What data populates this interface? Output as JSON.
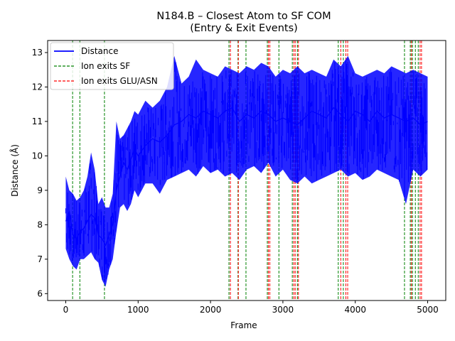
{
  "chart_data": {
    "type": "line",
    "title_line1": "N184.B – Closest Atom to SF COM",
    "title_line2": "(Entry & Exit Events)",
    "xlabel": "Frame",
    "ylabel": "Distance (Å)",
    "xlim": [
      -250,
      5250
    ],
    "ylim": [
      5.8,
      13.35
    ],
    "xticks": [
      0,
      1000,
      2000,
      3000,
      4000,
      5000
    ],
    "yticks": [
      6,
      7,
      8,
      9,
      10,
      11,
      12,
      13
    ],
    "grid": false,
    "legend_position": "top-left",
    "legend": [
      {
        "label": "Distance",
        "style": "solid",
        "color": "#0000ff"
      },
      {
        "label": "Ion exits SF",
        "style": "dashed",
        "color": "#008000"
      },
      {
        "label": "Ion exits GLU/ASN",
        "style": "dashed",
        "color": "#ff0000"
      }
    ],
    "series": [
      {
        "name": "Distance",
        "color": "#0000ff",
        "x": [
          0,
          50,
          100,
          150,
          200,
          250,
          300,
          350,
          400,
          450,
          500,
          550,
          600,
          650,
          700,
          750,
          800,
          850,
          900,
          950,
          1000,
          1100,
          1200,
          1300,
          1400,
          1500,
          1600,
          1700,
          1800,
          1900,
          2000,
          2100,
          2200,
          2300,
          2400,
          2500,
          2600,
          2700,
          2800,
          2900,
          3000,
          3100,
          3200,
          3300,
          3400,
          3500,
          3600,
          3700,
          3800,
          3900,
          4000,
          4100,
          4200,
          4300,
          4400,
          4500,
          4600,
          4700,
          4800,
          4900,
          5000
        ],
        "y": [
          8.1,
          8.4,
          7.7,
          7.6,
          7.8,
          7.9,
          8.1,
          8.3,
          8.2,
          7.7,
          7.6,
          7.4,
          7.7,
          8.0,
          9.0,
          9.4,
          9.8,
          9.6,
          9.9,
          10.2,
          10.0,
          10.3,
          10.5,
          10.4,
          10.6,
          10.9,
          11.0,
          11.2,
          11.1,
          11.3,
          11.2,
          11.1,
          11.3,
          11.4,
          11.0,
          11.2,
          11.1,
          11.3,
          11.2,
          11.0,
          11.1,
          11.0,
          10.9,
          11.1,
          11.3,
          11.2,
          11.1,
          11.4,
          11.2,
          11.0,
          11.3,
          11.2,
          11.0,
          11.3,
          11.1,
          11.2,
          11.1,
          11.0,
          11.1,
          10.9,
          11.0
        ],
        "low": [
          7.3,
          7.0,
          6.8,
          6.7,
          7.0,
          7.0,
          7.1,
          7.2,
          7.0,
          6.9,
          6.4,
          6.2,
          6.7,
          7.0,
          7.8,
          8.5,
          8.6,
          8.4,
          8.6,
          9.0,
          8.8,
          9.2,
          9.2,
          8.9,
          9.3,
          9.4,
          9.5,
          9.6,
          9.4,
          9.7,
          9.5,
          9.6,
          9.4,
          9.5,
          9.3,
          9.6,
          9.7,
          9.5,
          9.8,
          9.4,
          9.6,
          9.3,
          9.2,
          9.4,
          9.2,
          9.3,
          9.4,
          9.5,
          9.6,
          9.4,
          9.5,
          9.3,
          9.4,
          9.6,
          9.5,
          9.4,
          9.3,
          8.6,
          9.6,
          9.4,
          9.6
        ],
        "high": [
          9.4,
          9.0,
          8.9,
          8.7,
          8.8,
          9.0,
          9.4,
          10.1,
          9.6,
          8.6,
          8.8,
          8.5,
          8.5,
          8.9,
          11.0,
          10.5,
          10.6,
          10.8,
          11.0,
          11.3,
          11.2,
          11.6,
          11.4,
          11.6,
          12.0,
          12.9,
          12.1,
          12.3,
          12.8,
          12.5,
          12.4,
          12.3,
          12.6,
          12.5,
          12.4,
          12.6,
          12.5,
          12.7,
          12.6,
          12.3,
          12.5,
          12.4,
          12.6,
          12.4,
          12.5,
          12.4,
          12.3,
          12.8,
          12.6,
          12.9,
          12.4,
          12.3,
          12.4,
          12.5,
          12.4,
          12.6,
          12.5,
          12.4,
          12.5,
          12.4,
          12.3
        ]
      }
    ],
    "events_sf": [
      95,
      195,
      535,
      2255,
      2380,
      2490,
      2785,
      2945,
      3130,
      3200,
      3765,
      3835,
      4680,
      4760,
      4790,
      4830,
      4870
    ],
    "events_glu_asn": [
      2275,
      2385,
      2800,
      2820,
      3150,
      3170,
      3215,
      3800,
      3870,
      3895,
      4775,
      4895,
      4915
    ]
  }
}
